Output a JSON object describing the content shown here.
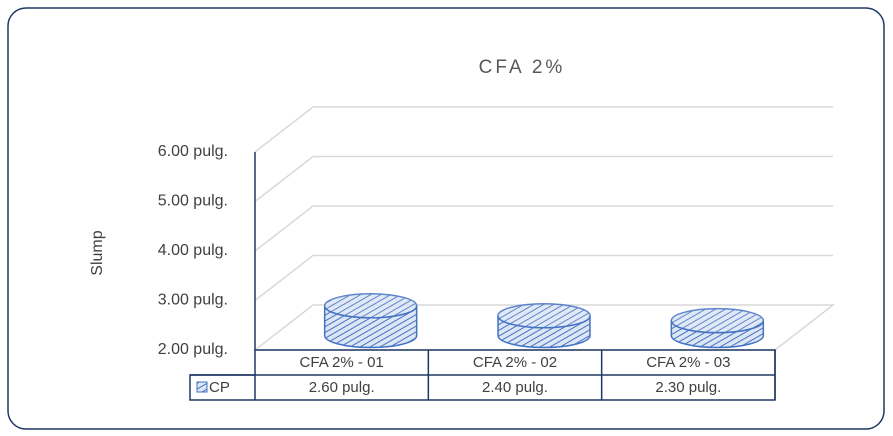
{
  "chart_data": {
    "type": "cylinder3d",
    "title": "CFA 2%",
    "y_label": "Slump",
    "categories": [
      "CFA 2% - 01",
      "CFA 2% - 02",
      "CFA 2% - 03"
    ],
    "series": [
      {
        "name": "CP",
        "color": "#4472c4",
        "values": [
          2.6,
          2.4,
          2.3
        ],
        "value_labels": [
          "2.60 pulg.",
          "2.40 pulg.",
          "2.30 pulg."
        ]
      }
    ],
    "ylim": [
      2,
      6
    ],
    "yticks": [
      {
        "value": 2,
        "label": "2.00 pulg."
      },
      {
        "value": 3,
        "label": "3.00 pulg."
      },
      {
        "value": 4,
        "label": "4.00 pulg."
      },
      {
        "value": 5,
        "label": "5.00 pulg."
      },
      {
        "value": 6,
        "label": "6.00 pulg."
      }
    ],
    "grid": true
  }
}
